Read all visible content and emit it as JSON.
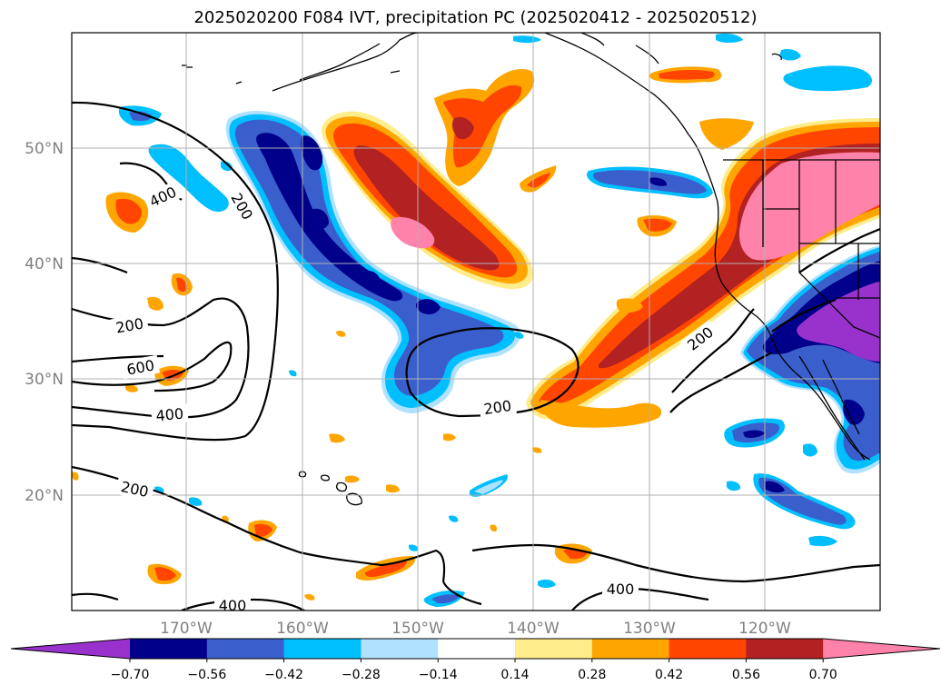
{
  "title": "2025020200 F084 IVT, precipitation PC (2025020412 - 2025020512)",
  "map": {
    "lon_labels": [
      "170°W",
      "160°W",
      "150°W",
      "140°W",
      "130°W",
      "120°W"
    ],
    "lat_labels": [
      "50°N",
      "40°N",
      "30°N",
      "20°N"
    ],
    "contour_labels": [
      "400",
      "200",
      "200",
      "600",
      "400",
      "200",
      "200",
      "200",
      "400",
      "400"
    ]
  },
  "colorbar": {
    "ticks": [
      "−0.70",
      "−0.56",
      "−0.42",
      "−0.28",
      "−0.14",
      "0.14",
      "0.28",
      "0.42",
      "0.56",
      "0.70"
    ],
    "colors": [
      "#9932cc",
      "#00008b",
      "#3a5fcd",
      "#00bfff",
      "#b0e2ff",
      "#ffffff",
      "#ffec8b",
      "#ffa500",
      "#ff4500",
      "#b22222",
      "#ff82ab"
    ]
  }
}
